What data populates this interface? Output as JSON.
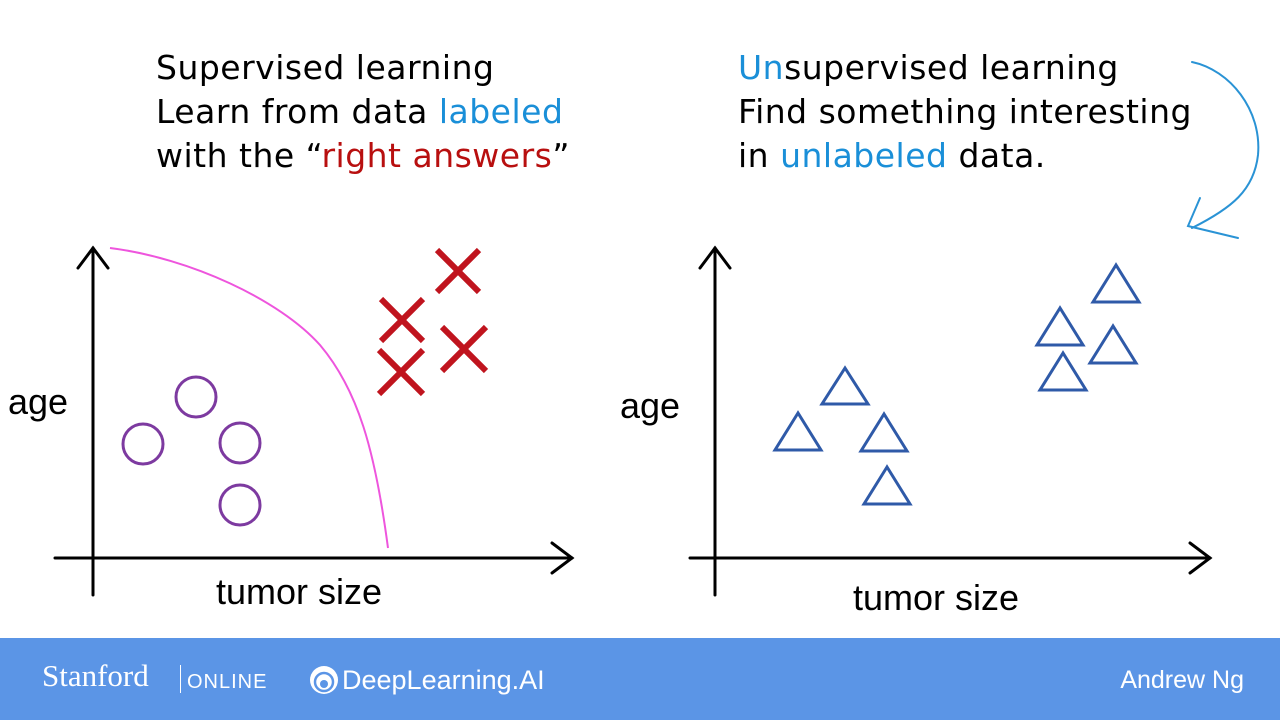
{
  "left": {
    "line1": "Supervised learning",
    "line2_pre": "Learn from data ",
    "line2_highlight": "labeled",
    "line3_pre": "with the “",
    "line3_highlight": "right answers",
    "line3_post": "”",
    "plot": {
      "ylabel": "age",
      "xlabel": "tumor size"
    }
  },
  "right": {
    "line1_highlight": "Un",
    "line1_rest": "supervised learning",
    "line2": "Find something interesting",
    "line3_pre": "in ",
    "line3_highlight": "unlabeled",
    "line3_post": " data.",
    "plot": {
      "ylabel": "age",
      "xlabel": "tumor size"
    }
  },
  "footer": {
    "stanford": "Stanford",
    "online": "ONLINE",
    "deeplearning": "DeepLearning.AI",
    "author": "Andrew Ng"
  },
  "colors": {
    "highlight_blue": "#1a8fd8",
    "highlight_red": "#b80f0f",
    "circle_purple": "#7d3aa0",
    "cross_red": "#c0141e",
    "boundary_magenta": "#ee55dd",
    "triangle_blue": "#2f5aa8",
    "annotation_blue": "#2a93d5",
    "footer_bg": "#5b95e6"
  },
  "icons": {
    "circle": "circle-icon",
    "cross": "cross-icon",
    "triangle": "triangle-icon",
    "arrow": "curved-arrow-icon",
    "logo": "deeplearning-logo-icon"
  }
}
